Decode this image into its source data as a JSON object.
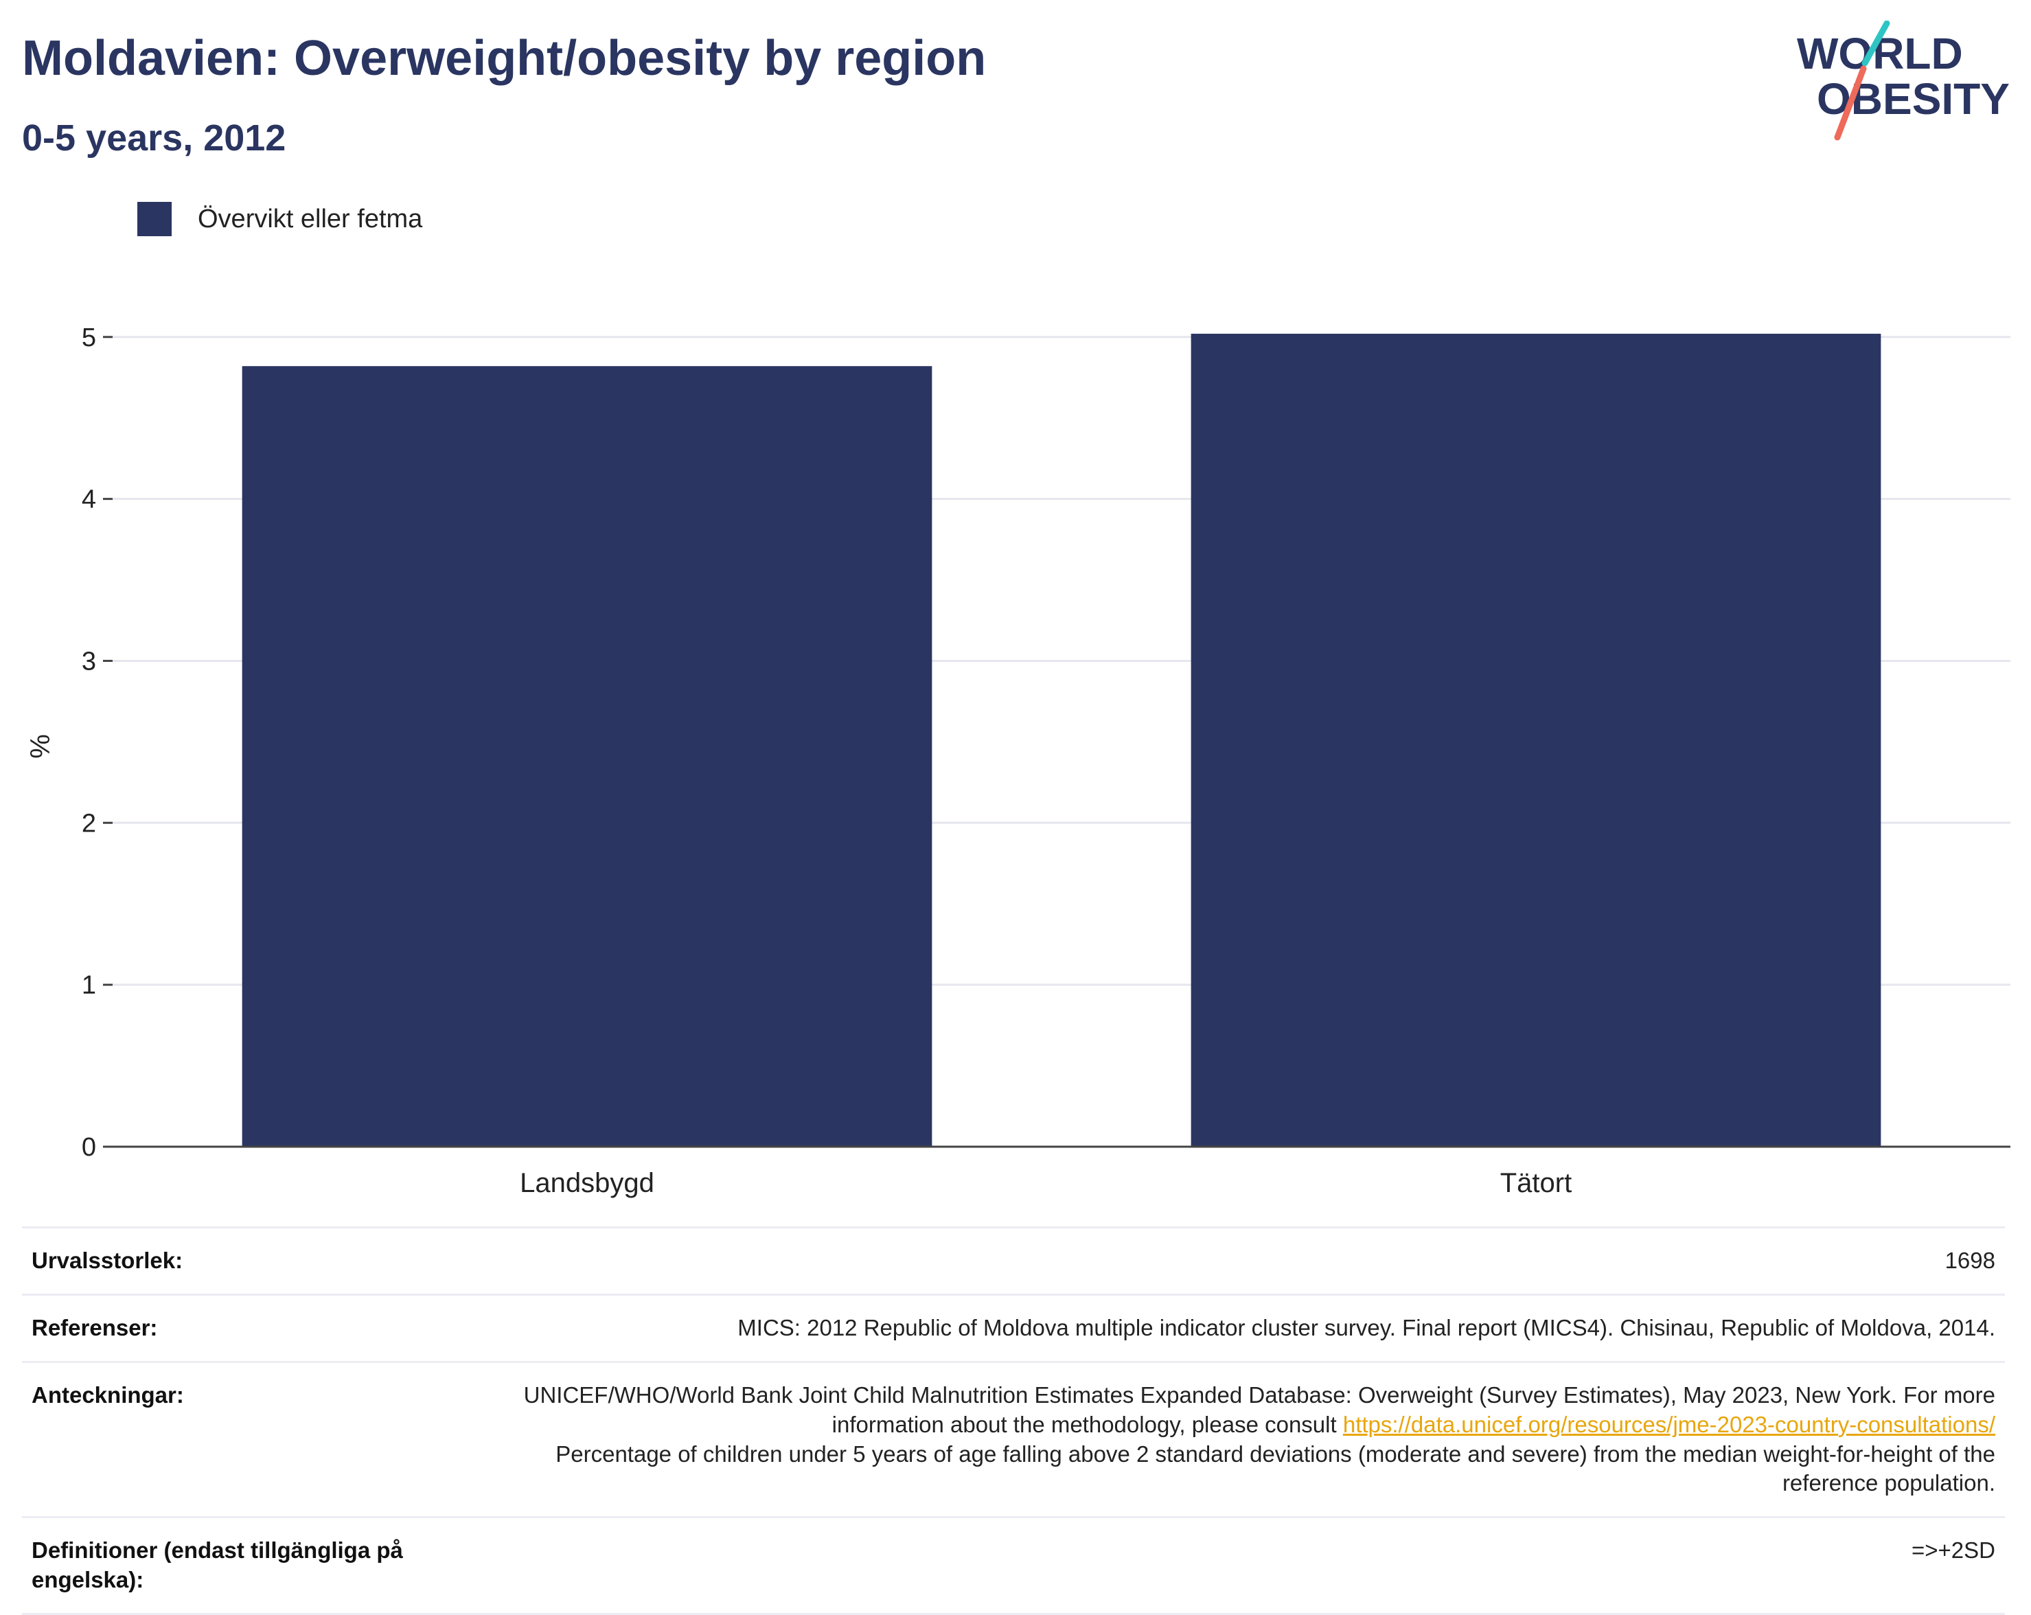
{
  "header": {
    "title": "Moldavien: Overweight/obesity by region",
    "subtitle": "0-5 years, 2012"
  },
  "logo": {
    "line1": "WORLD",
    "line2": "OBESITY",
    "colors": {
      "text": "#2a3561",
      "accent_teal": "#2ec4c4",
      "accent_coral": "#ee6a5a"
    }
  },
  "legend": {
    "label": "Övervikt eller fetma",
    "color": "#2a3561"
  },
  "chart_data": {
    "type": "bar",
    "categories": [
      "Landsbygd",
      "Tätort"
    ],
    "series": [
      {
        "name": "Övervikt eller fetma",
        "values": [
          4.82,
          5.02
        ],
        "color": "#2a3561"
      }
    ],
    "title": "Moldavien: Overweight/obesity by region",
    "subtitle": "0-5 years, 2012",
    "xlabel": "",
    "ylabel": "%",
    "ylim": [
      0,
      5.3
    ],
    "yticks": [
      0,
      1,
      2,
      3,
      4,
      5
    ],
    "grid": true,
    "legend_position": "top-left"
  },
  "info": {
    "sample_size": {
      "label": "Urvalsstorlek:",
      "value": "1698"
    },
    "references": {
      "label": "Referenser:",
      "value": "MICS: 2012 Republic of Moldova multiple indicator cluster survey. Final report (MICS4). Chisinau, Republic of Moldova, 2014."
    },
    "notes": {
      "label": "Anteckningar:",
      "text1": "UNICEF/WHO/World Bank Joint Child Malnutrition Estimates Expanded Database: Overweight (Survey Estimates), May 2023, New York. For more information about the methodology, please consult ",
      "link": "https://data.unicef.org/resources/jme-2023-country-consultations/",
      "text2": "Percentage of children under 5 years of age falling above 2 standard deviations (moderate and severe) from the median weight-for-height of the reference population."
    },
    "definitions": {
      "label": "Definitioner (endast tillgängliga på engelska):",
      "value": "=>+2SD"
    }
  }
}
